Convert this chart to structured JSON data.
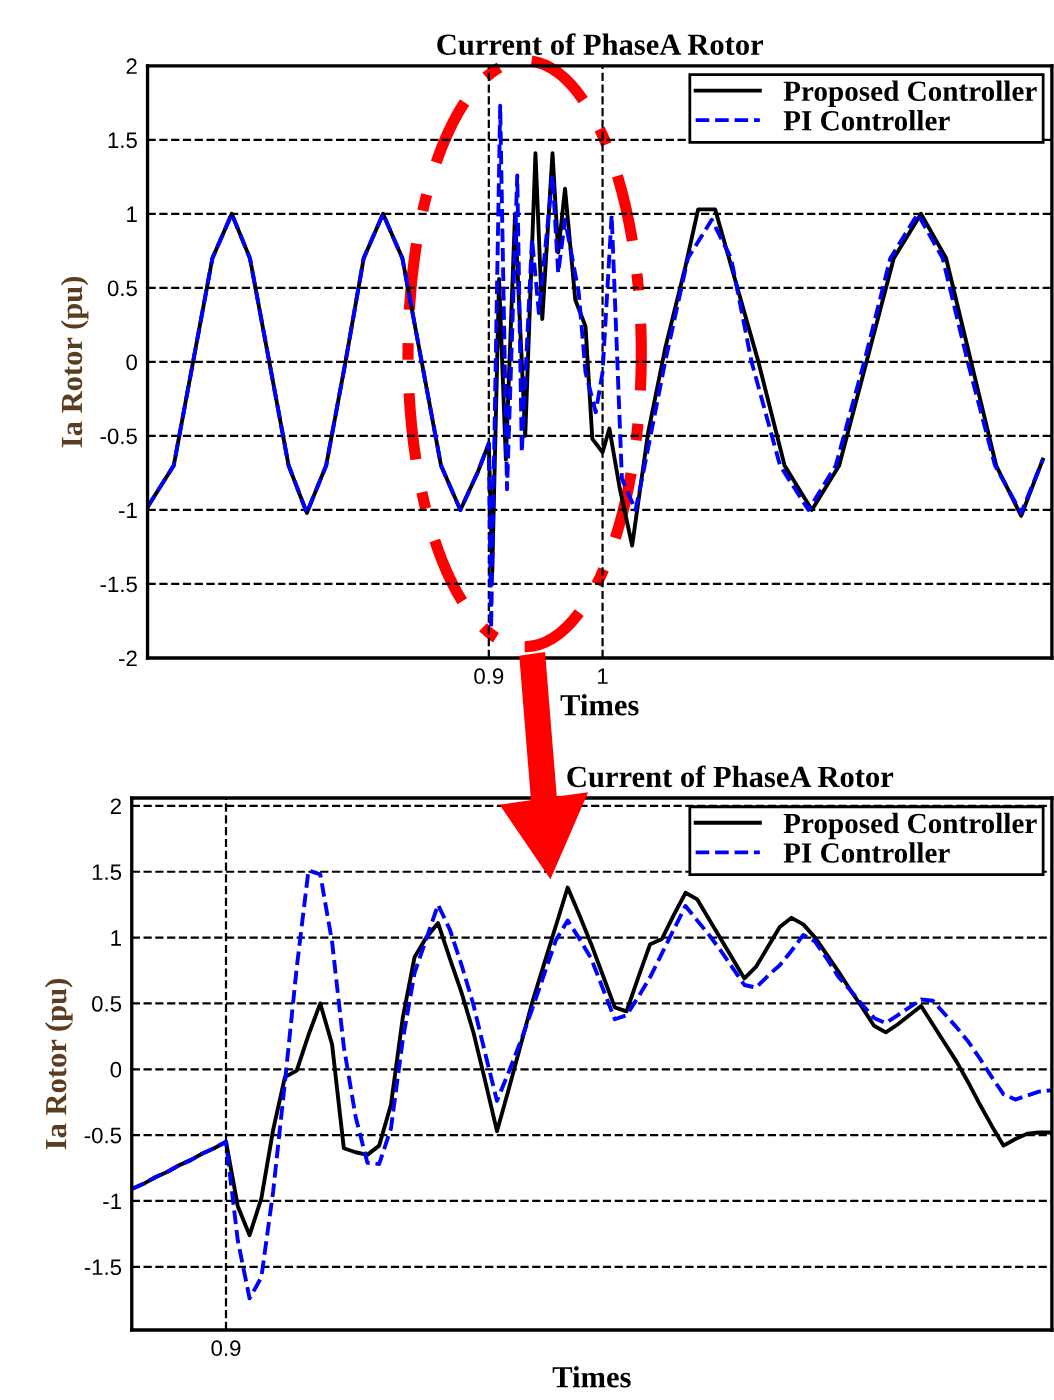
{
  "chart_data": [
    {
      "type": "line",
      "title": "Current of PhaseA Rotor",
      "xlabel": "Times",
      "ylabel": "Ia Rotor (pu)",
      "xlim": [
        0.6,
        1.395
      ],
      "xticks": [
        0.9,
        1
      ],
      "ylim": [
        -2,
        2
      ],
      "yticks": [
        -2,
        -1.5,
        -1,
        -0.5,
        0,
        0.5,
        1,
        1.5,
        2
      ],
      "grid": true,
      "legend": "top right",
      "series": [
        {
          "name": "Proposed Controller",
          "color": "#000000",
          "line_style": "solid",
          "x": [
            0.6,
            0.623,
            0.64,
            0.657,
            0.674,
            0.69,
            0.707,
            0.724,
            0.74,
            0.757,
            0.774,
            0.79,
            0.807,
            0.824,
            0.841,
            0.858,
            0.875,
            0.89,
            0.9,
            0.903,
            0.909,
            0.915,
            0.923,
            0.932,
            0.941,
            0.947,
            0.956,
            0.961,
            0.967,
            0.976,
            0.985,
            0.991,
            1.0,
            1.006,
            1.015,
            1.026,
            1.04,
            1.055,
            1.073,
            1.084,
            1.099,
            1.113,
            1.137,
            1.16,
            1.184,
            1.208,
            1.232,
            1.256,
            1.28,
            1.302,
            1.324,
            1.346,
            1.368,
            1.387
          ],
          "values": [
            -0.98,
            -0.7,
            0,
            0.7,
            1.0,
            0.7,
            0,
            -0.7,
            -1.02,
            -0.7,
            0,
            0.7,
            1.0,
            0.7,
            0,
            -0.7,
            -1.0,
            -0.75,
            -0.55,
            -1.42,
            0.56,
            -0.66,
            0.99,
            -0.5,
            1.41,
            0.29,
            1.41,
            0.74,
            1.17,
            0.42,
            0.24,
            -0.52,
            -0.61,
            -0.45,
            -0.85,
            -1.24,
            -0.48,
            0.09,
            0.65,
            1.03,
            1.03,
            0.65,
            0,
            -0.7,
            -1.0,
            -0.7,
            0,
            0.7,
            1.0,
            0.7,
            0,
            -0.7,
            -1.04,
            -0.66
          ]
        },
        {
          "name": "PI Controller",
          "color": "#0000ff",
          "line_style": "dashed",
          "x": [
            0.6,
            0.623,
            0.64,
            0.657,
            0.674,
            0.69,
            0.707,
            0.724,
            0.74,
            0.757,
            0.774,
            0.79,
            0.807,
            0.824,
            0.841,
            0.858,
            0.875,
            0.89,
            0.9,
            0.902,
            0.91,
            0.916,
            0.925,
            0.929,
            0.938,
            0.944,
            0.956,
            0.961,
            0.967,
            0.979,
            0.985,
            0.994,
            1.0,
            1.008,
            1.017,
            1.029,
            1.037,
            1.055,
            1.075,
            1.096,
            1.113,
            1.131,
            1.156,
            1.181,
            1.205,
            1.23,
            1.253,
            1.277,
            1.299,
            1.321,
            1.345,
            1.368,
            1.387
          ],
          "values": [
            -0.98,
            -0.7,
            0,
            0.7,
            1.0,
            0.7,
            0,
            -0.7,
            -1.02,
            -0.7,
            0,
            0.7,
            1.0,
            0.7,
            0,
            -0.7,
            -1.0,
            -0.75,
            -0.55,
            -1.8,
            1.73,
            -0.86,
            1.26,
            -0.61,
            0.83,
            0.33,
            1.26,
            0.6,
            0.96,
            0.47,
            -0.07,
            -0.34,
            -0.07,
            0.99,
            -0.79,
            -1.0,
            -0.7,
            0,
            0.7,
            0.96,
            0.7,
            0,
            -0.7,
            -1.0,
            -0.7,
            0,
            0.7,
            1.0,
            0.7,
            0,
            -0.7,
            -1.02,
            -0.66
          ]
        }
      ]
    },
    {
      "type": "line",
      "title": "Current of PhaseA Rotor",
      "xlabel": "Times",
      "ylabel": "Ia Rotor (pu)",
      "categories": [
        null,
        null,
        null,
        null,
        null,
        null,
        null,
        null,
        "0.9",
        null,
        null,
        null,
        null,
        null,
        null,
        null,
        null,
        null,
        null,
        null,
        null,
        null,
        null,
        null,
        null,
        null,
        null,
        null,
        null,
        null,
        null,
        null,
        null,
        null,
        null,
        null,
        null,
        null,
        null,
        null,
        null,
        null,
        null,
        null,
        null,
        null,
        null,
        null,
        null,
        null,
        null,
        null,
        null,
        null,
        null,
        null,
        null,
        null,
        null,
        null,
        null,
        null,
        null,
        null,
        null,
        null,
        null,
        null,
        null,
        null,
        null,
        null,
        null,
        null,
        null,
        null,
        null,
        null,
        null
      ],
      "ylim": [
        -1.98,
        2.06
      ],
      "yticks": [
        -1.5,
        -1,
        -0.5,
        0,
        0.5,
        1,
        1.5,
        2
      ],
      "grid": true,
      "legend": "top right",
      "series": [
        {
          "name": "Proposed Controller",
          "color": "#000000",
          "line_style": "solid",
          "values": [
            -0.91,
            -0.87,
            -0.82,
            -0.78,
            -0.73,
            -0.69,
            -0.64,
            -0.6,
            -0.55,
            -1.04,
            -1.26,
            -0.98,
            -0.46,
            -0.06,
            -0.01,
            0.26,
            0.5,
            0.19,
            -0.6,
            -0.63,
            -0.65,
            -0.58,
            -0.27,
            0.39,
            0.85,
            1.0,
            1.11,
            0.84,
            0.58,
            0.28,
            -0.09,
            -0.47,
            -0.15,
            0.18,
            0.51,
            0.8,
            1.09,
            1.38,
            1.17,
            0.95,
            0.71,
            0.47,
            0.44,
            0.7,
            0.95,
            0.99,
            1.17,
            1.34,
            1.29,
            1.14,
            0.99,
            0.84,
            0.69,
            0.78,
            0.93,
            1.08,
            1.15,
            1.1,
            1.0,
            0.87,
            0.74,
            0.6,
            0.47,
            0.33,
            0.28,
            0.34,
            0.41,
            0.48,
            0.34,
            0.2,
            0.06,
            -0.1,
            -0.27,
            -0.43,
            -0.58,
            -0.53,
            -0.49,
            -0.48,
            -0.48
          ]
        },
        {
          "name": "PI Controller",
          "color": "#0000ff",
          "line_style": "dashed",
          "values": [
            -0.91,
            -0.87,
            -0.82,
            -0.78,
            -0.73,
            -0.69,
            -0.64,
            -0.6,
            -0.55,
            -1.3,
            -1.74,
            -1.58,
            -0.93,
            -0.1,
            0.77,
            1.51,
            1.48,
            0.97,
            0.17,
            -0.36,
            -0.71,
            -0.72,
            -0.45,
            0.22,
            0.73,
            0.99,
            1.25,
            1.06,
            0.79,
            0.49,
            0.12,
            -0.24,
            -0.02,
            0.21,
            0.46,
            0.72,
            0.98,
            1.13,
            0.99,
            0.84,
            0.61,
            0.38,
            0.41,
            0.55,
            0.7,
            0.88,
            1.06,
            1.24,
            1.13,
            1.02,
            0.9,
            0.77,
            0.64,
            0.62,
            0.71,
            0.79,
            0.9,
            1.02,
            0.97,
            0.84,
            0.7,
            0.6,
            0.49,
            0.39,
            0.35,
            0.41,
            0.47,
            0.53,
            0.52,
            0.42,
            0.32,
            0.21,
            0.08,
            -0.06,
            -0.19,
            -0.23,
            -0.2,
            -0.17,
            -0.16
          ]
        }
      ]
    }
  ]
}
